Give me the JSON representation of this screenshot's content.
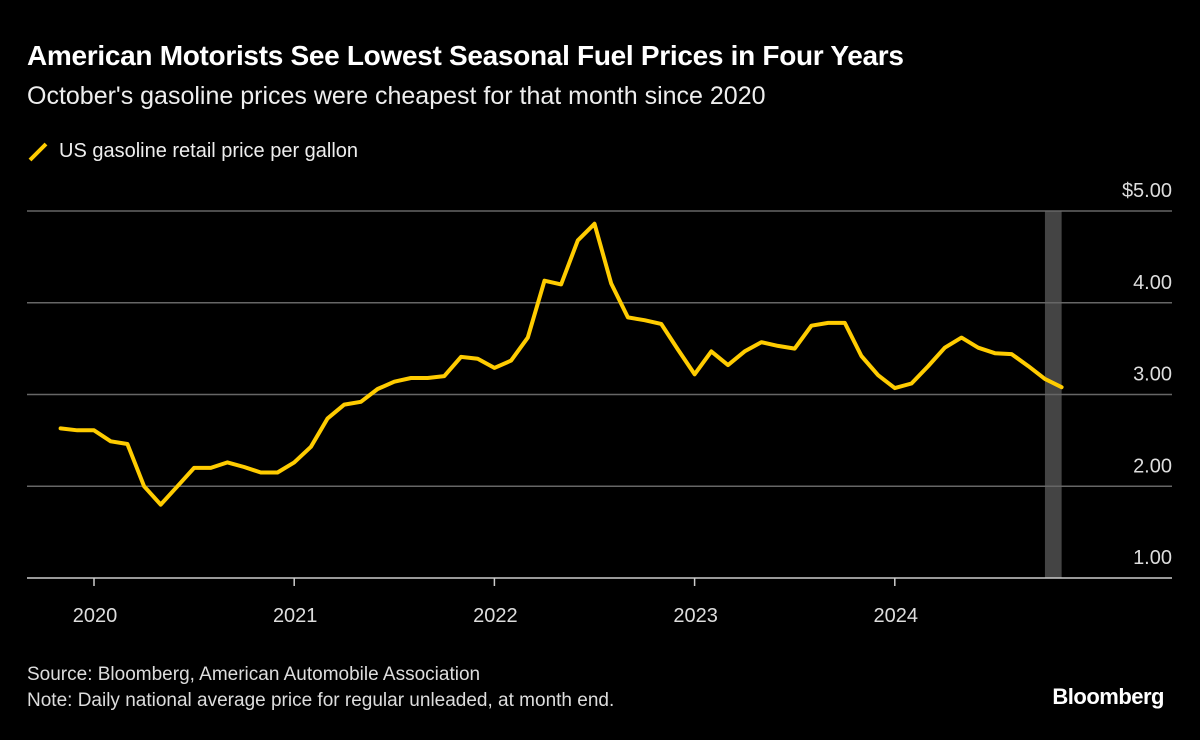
{
  "header": {
    "title": "American Motorists See Lowest Seasonal Fuel Prices in Four Years",
    "subtitle": "October's gasoline prices were cheapest for that month since 2020"
  },
  "footer": {
    "source": "Source: Bloomberg, American Automobile Association",
    "note": "Note: Daily national average price for regular unleaded, at month end.",
    "logo": "Bloomberg"
  },
  "colors": {
    "background": "#000000",
    "line": "#FFCC00",
    "highlight": "#444444",
    "grid": "#666666"
  },
  "chart_data": {
    "type": "line",
    "title": "American Motorists See Lowest Seasonal Fuel Prices in Four Years",
    "subtitle": "October's gasoline prices were cheapest for that month since 2020",
    "xlabel": "",
    "ylabel": "",
    "ylim": [
      1,
      5
    ],
    "y_ticks": [
      {
        "value": 5,
        "label": "$5.00"
      },
      {
        "value": 4,
        "label": "4.00"
      },
      {
        "value": 3,
        "label": "3.00"
      },
      {
        "value": 2,
        "label": "2.00"
      },
      {
        "value": 1,
        "label": "1.00"
      }
    ],
    "x_ticks": [
      "2020",
      "2021",
      "2022",
      "2023",
      "2024"
    ],
    "y_axis_position": "right",
    "grid": true,
    "legend_position": "top-left",
    "highlight_period": "2024-10",
    "series": [
      {
        "name": "US gasoline retail price per gallon",
        "x": [
          "2019-10",
          "2019-11",
          "2019-12",
          "2020-01",
          "2020-02",
          "2020-03",
          "2020-04",
          "2020-05",
          "2020-06",
          "2020-07",
          "2020-08",
          "2020-09",
          "2020-10",
          "2020-11",
          "2020-12",
          "2021-01",
          "2021-02",
          "2021-03",
          "2021-04",
          "2021-05",
          "2021-06",
          "2021-07",
          "2021-08",
          "2021-09",
          "2021-10",
          "2021-11",
          "2021-12",
          "2022-01",
          "2022-02",
          "2022-03",
          "2022-04",
          "2022-05",
          "2022-06",
          "2022-07",
          "2022-08",
          "2022-09",
          "2022-10",
          "2022-11",
          "2022-12",
          "2023-01",
          "2023-02",
          "2023-03",
          "2023-04",
          "2023-05",
          "2023-06",
          "2023-07",
          "2023-08",
          "2023-09",
          "2023-10",
          "2023-11",
          "2023-12",
          "2024-01",
          "2024-02",
          "2024-03",
          "2024-04",
          "2024-05",
          "2024-06",
          "2024-07",
          "2024-08",
          "2024-09",
          "2024-10"
        ],
        "values": [
          2.63,
          2.61,
          2.61,
          2.49,
          2.46,
          2.0,
          1.8,
          2.0,
          2.2,
          2.2,
          2.26,
          2.21,
          2.15,
          2.15,
          2.26,
          2.43,
          2.74,
          2.89,
          2.92,
          3.06,
          3.14,
          3.18,
          3.18,
          3.2,
          3.41,
          3.39,
          3.29,
          3.37,
          3.62,
          4.24,
          4.2,
          4.68,
          4.86,
          4.21,
          3.84,
          3.81,
          3.77,
          3.49,
          3.22,
          3.47,
          3.32,
          3.47,
          3.57,
          3.53,
          3.5,
          3.75,
          3.78,
          3.78,
          3.42,
          3.21,
          3.07,
          3.12,
          3.31,
          3.51,
          3.62,
          3.51,
          3.45,
          3.44,
          3.31,
          3.17,
          3.08
        ]
      }
    ]
  }
}
